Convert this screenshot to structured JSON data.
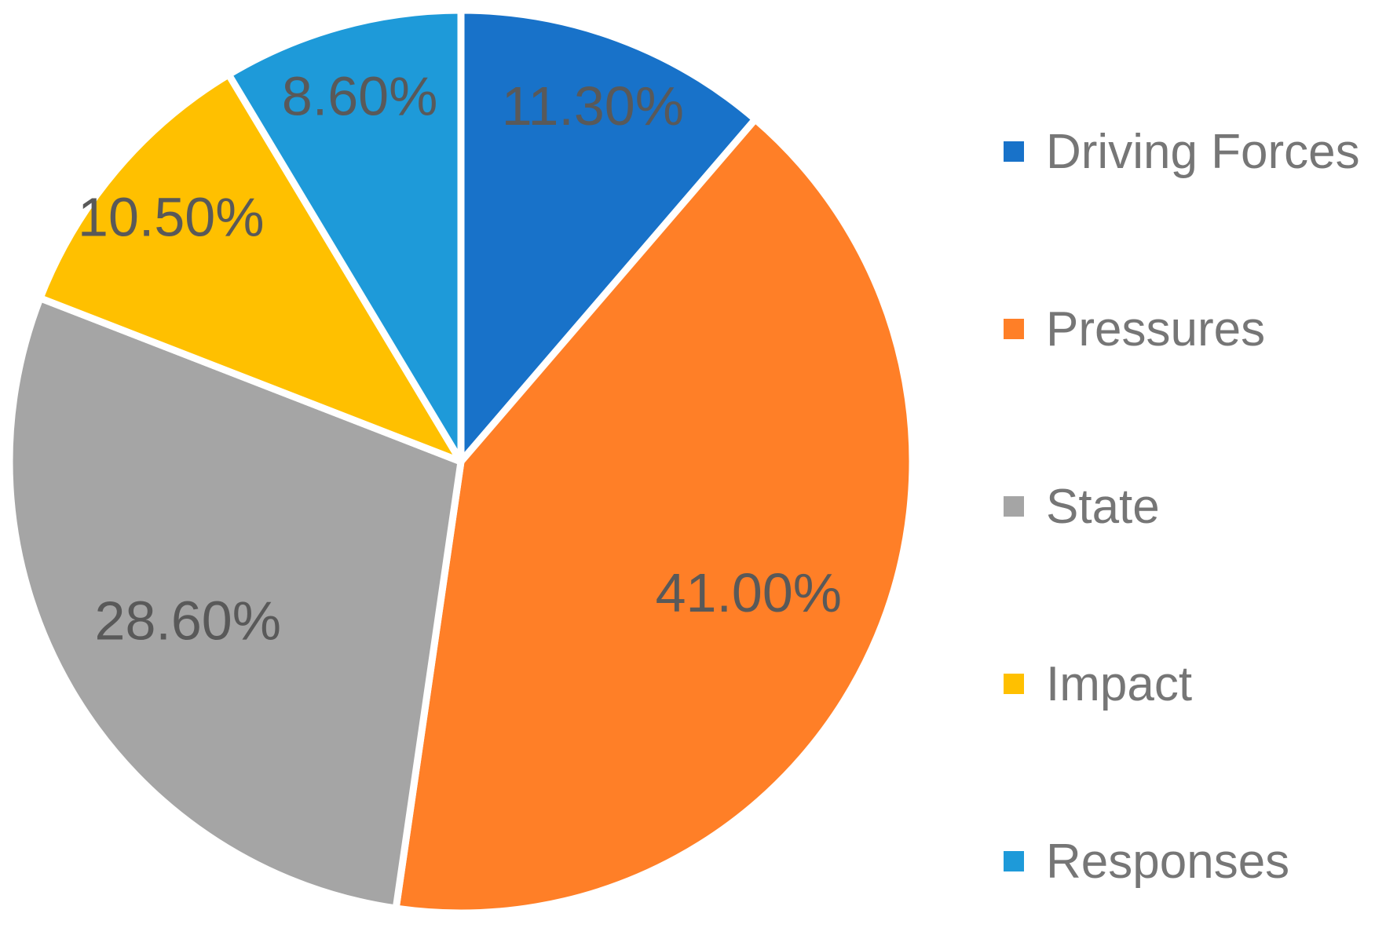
{
  "chart_data": {
    "type": "pie",
    "categories": [
      "Driving Forces",
      "Pressures",
      "State",
      "Impact",
      "Responses"
    ],
    "values": [
      11.3,
      41.0,
      28.6,
      10.5,
      8.6
    ],
    "data_labels": [
      "11.30%",
      "41.00%",
      "28.60%",
      "10.50%",
      "8.60%"
    ],
    "colors": [
      "#1872c9",
      "#ff7f27",
      "#a5a5a5",
      "#ffc000",
      "#1e9ad9"
    ],
    "start_angle_deg": 0,
    "direction": "clockwise",
    "legend_position": "right"
  }
}
